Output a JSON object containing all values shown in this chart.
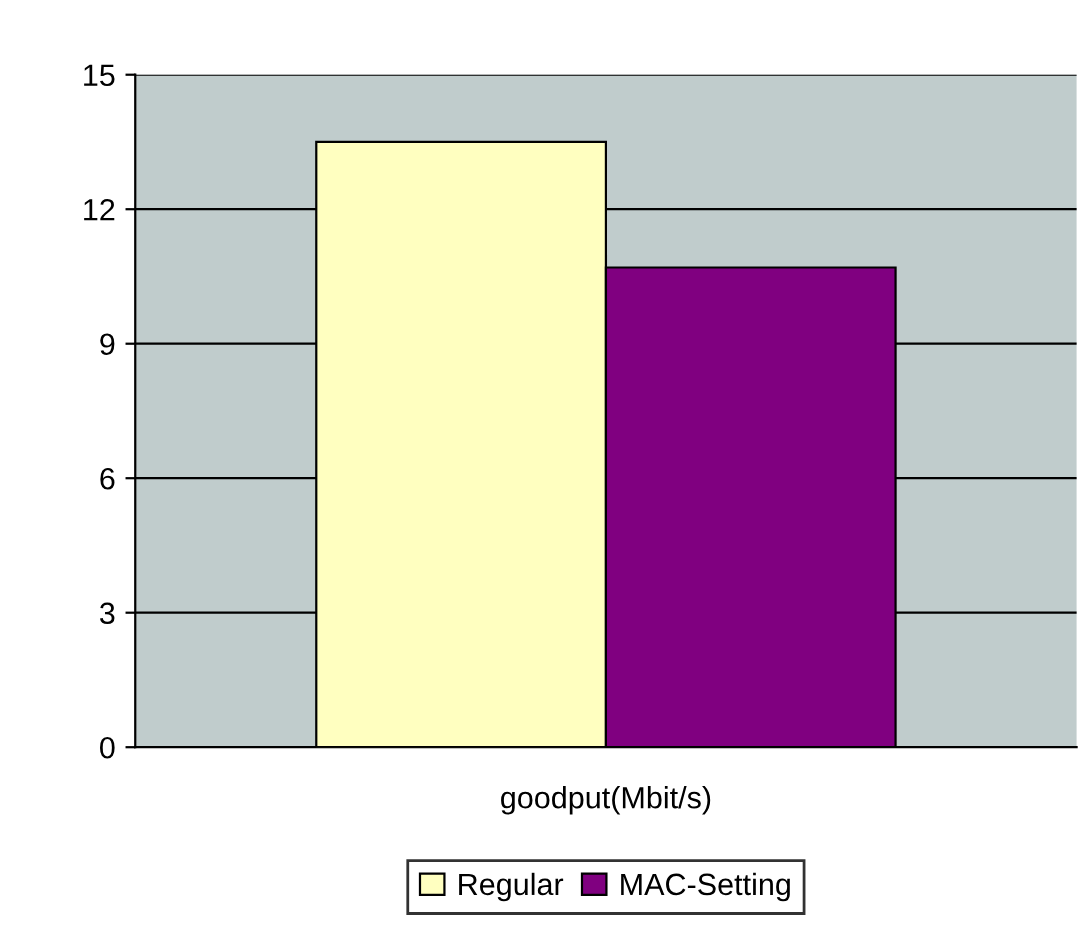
{
  "chart_data": {
    "type": "bar",
    "categories": [
      "goodput(Mbit/s)"
    ],
    "series": [
      {
        "name": "Regular",
        "color": "#ffffc0",
        "values": [
          13.5
        ]
      },
      {
        "name": "MAC-Setting",
        "color": "#800080",
        "values": [
          10.7
        ]
      }
    ],
    "ylim": [
      0,
      15
    ],
    "yticks": [
      0,
      3,
      6,
      9,
      12,
      15
    ],
    "grid": "y",
    "legend": "bottom"
  }
}
